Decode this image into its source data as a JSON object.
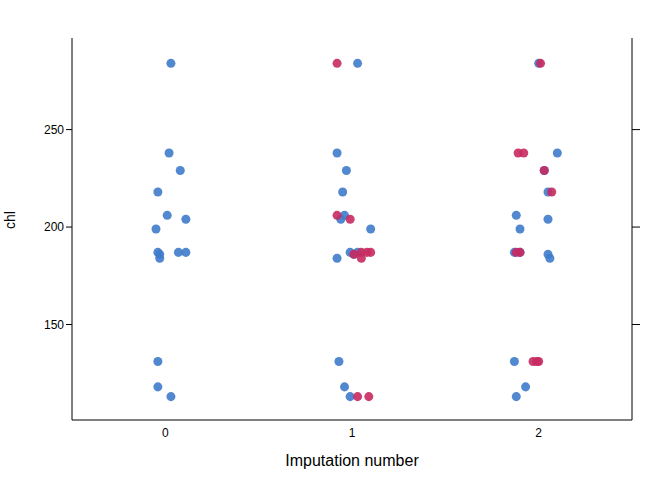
{
  "chart_data": {
    "type": "scatter",
    "x_label": "Imputation number",
    "y_label": "chl",
    "xlim": [
      -0.5,
      2.5
    ],
    "xticks": [
      0,
      1,
      2
    ],
    "ylim": [
      101,
      297
    ],
    "yticks": [
      150,
      200,
      250
    ],
    "grid": false,
    "marker": "circle",
    "series": [
      {
        "color": "#3F7BCB",
        "x": [
          0.03,
          0.02,
          0.08,
          -0.04,
          0.01,
          0.11,
          -0.05,
          -0.04,
          0.07,
          0.11,
          -0.03,
          -0.03,
          -0.04,
          -0.04,
          0.03,
          1.03,
          0.92,
          0.97,
          0.95,
          0.96,
          0.94,
          1.1,
          0.99,
          1.03,
          1.01,
          0.92,
          0.93,
          0.96,
          0.99,
          2.0,
          2.1,
          2.03,
          2.05,
          1.88,
          2.05,
          1.9,
          1.87,
          1.9,
          2.05,
          2.06,
          1.87,
          1.93,
          1.88
        ],
        "values": [
          284,
          238,
          229,
          218,
          206,
          204,
          199,
          187,
          187,
          187,
          186,
          184,
          131,
          118,
          113,
          284,
          238,
          229,
          218,
          206,
          204,
          199,
          187,
          187,
          186,
          184,
          131,
          118,
          113,
          284,
          238,
          229,
          218,
          206,
          204,
          199,
          187,
          187,
          186,
          184,
          131,
          118,
          113
        ]
      },
      {
        "color": "#C72A61",
        "x": [
          0.92,
          0.92,
          0.99,
          1.05,
          1.08,
          1.1,
          1.01,
          1.05,
          1.03,
          1.09,
          2.01,
          1.89,
          1.92,
          2.03,
          2.07,
          1.9,
          1.88,
          1.97,
          1.99,
          2.0
        ],
        "values": [
          284,
          206,
          204,
          187,
          187,
          187,
          186,
          184,
          113,
          113,
          284,
          238,
          238,
          229,
          218,
          187,
          187,
          131,
          131,
          131
        ]
      }
    ]
  }
}
